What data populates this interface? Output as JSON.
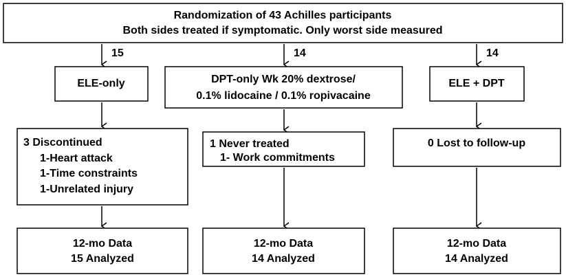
{
  "header": {
    "lines": [
      "Randomization of 43 Achilles participants",
      "Both sides treated if symptomatic. Only worst side measured"
    ]
  },
  "allocations": [
    "15",
    "14",
    "14"
  ],
  "arms": [
    {
      "group": [
        "ELE-only"
      ],
      "status": [
        "3 Discontinued",
        "1-Heart attack",
        "1-Time constraints",
        "1-Unrelated injury"
      ],
      "result": [
        "12-mo Data",
        "15 Analyzed"
      ]
    },
    {
      "group": [
        "DPT-only Wk 20% dextrose/",
        "0.1% lidocaine / 0.1% ropivacaine"
      ],
      "status": [
        "1 Never treated",
        "1- Work commitments"
      ],
      "result": [
        "12-mo Data",
        "14 Analyzed"
      ]
    },
    {
      "group": [
        "ELE + DPT"
      ],
      "status": [
        "0 Lost to follow-up"
      ],
      "result": [
        "12-mo Data",
        "14 Analyzed"
      ]
    }
  ]
}
